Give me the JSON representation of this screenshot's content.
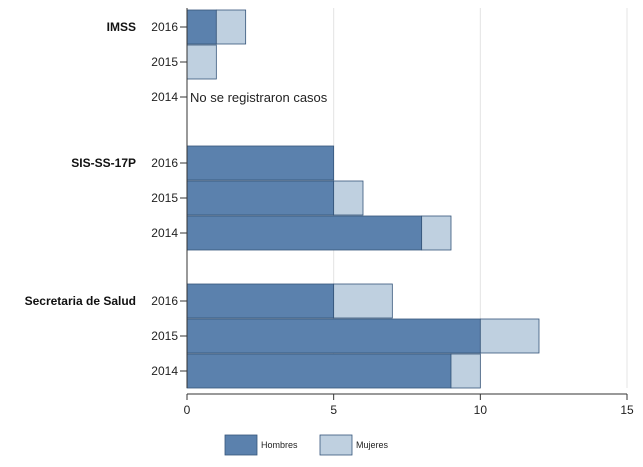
{
  "chart_data": {
    "type": "bar",
    "orientation": "horizontal",
    "stacked": true,
    "xlim": [
      0,
      15
    ],
    "xticks": [
      "0",
      "5",
      "10",
      "15"
    ],
    "grid": true,
    "legend_placement": "bottom",
    "series": [
      {
        "name": "Hombres",
        "color": "#5b81ad"
      },
      {
        "name": "Mujeres",
        "color": "#bfd0e0"
      }
    ],
    "groups": [
      {
        "name": "IMSS",
        "rows": [
          {
            "year": "2016",
            "values": [
              1,
              1
            ]
          },
          {
            "year": "2015",
            "values": [
              0,
              1
            ]
          },
          {
            "year": "2014",
            "values": [
              0,
              0
            ],
            "note": "No se  registraron casos"
          }
        ]
      },
      {
        "name": "SIS-SS-17P",
        "rows": [
          {
            "year": "2016",
            "values": [
              5,
              0
            ]
          },
          {
            "year": "2015",
            "values": [
              5,
              1
            ]
          },
          {
            "year": "2014",
            "values": [
              8,
              1
            ]
          }
        ]
      },
      {
        "name": "Secretaria de Salud",
        "rows": [
          {
            "year": "2016",
            "values": [
              5,
              2
            ]
          },
          {
            "year": "2015",
            "values": [
              10,
              2
            ]
          },
          {
            "year": "2014",
            "values": [
              9,
              1
            ]
          }
        ]
      }
    ]
  }
}
